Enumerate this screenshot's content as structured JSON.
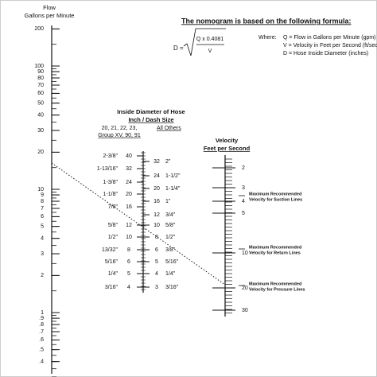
{
  "formula": {
    "heading": "The nomogram is based on the following formula:",
    "lhs": "D =",
    "numerator": "Q x  0.4081",
    "denominator": "V",
    "where": "Where:",
    "definitions": [
      "Q = Flow in Gallons per Minute (gpm)",
      "V = Velocity in Feet per Second (ft/sec)",
      "D = Hose Inside Diameter (inches)"
    ]
  },
  "flow_scale": {
    "title": [
      "Flow",
      "Gallons per Minute"
    ],
    "labels": [
      "200",
      "100",
      "90",
      "80",
      "70",
      "60",
      "50",
      "40",
      "30",
      "20",
      "10",
      "9",
      "8",
      "7",
      "6",
      "5",
      "4",
      "3",
      "2",
      "1",
      ".9",
      ".8",
      ".7",
      ".6",
      ".5",
      ".4"
    ]
  },
  "diameter_scale": {
    "title": "Inside Diameter of Hose",
    "subtitle": "Inch / Dash Size",
    "group_heading": [
      "20, 21, 22, 23,",
      "Group XV, 90, 91"
    ],
    "others_heading": "All Others",
    "left": [
      {
        "inch": "2-3/8\"",
        "dash": "40"
      },
      {
        "inch": "1-13/16\"",
        "dash": "32"
      },
      {
        "inch": "1-3/8\"",
        "dash": "24"
      },
      {
        "inch": "1-1/8\"",
        "dash": "20"
      },
      {
        "inch": "7/8\"",
        "dash": "16"
      },
      {
        "inch": "5/8\"",
        "dash": "12"
      },
      {
        "inch": "1/2\"",
        "dash": "10"
      },
      {
        "inch": "13/32\"",
        "dash": "8"
      },
      {
        "inch": "5/16\"",
        "dash": "6"
      },
      {
        "inch": "1/4\"",
        "dash": "5"
      },
      {
        "inch": "3/16\"",
        "dash": "4"
      }
    ],
    "right": [
      {
        "dash": "32",
        "inch": "2\""
      },
      {
        "dash": "24",
        "inch": "1-1/2\""
      },
      {
        "dash": "20",
        "inch": "1-1/4\""
      },
      {
        "dash": "16",
        "inch": "1\""
      },
      {
        "dash": "12",
        "inch": "3/4\""
      },
      {
        "dash": "10",
        "inch": "5/8\""
      },
      {
        "dash": "8",
        "inch": "1/2\""
      },
      {
        "dash": "6",
        "inch": "3/8\""
      },
      {
        "dash": "5",
        "inch": "5/16\""
      },
      {
        "dash": "4",
        "inch": "1/4\""
      },
      {
        "dash": "3",
        "inch": "3/16\""
      }
    ]
  },
  "velocity_scale": {
    "title": [
      "Velocity",
      "Feet per Second"
    ],
    "labels": [
      "2",
      "3",
      "4",
      "5",
      "10",
      "20",
      "30"
    ],
    "limits": [
      {
        "lines": [
          "Maximum Recommended",
          "Velocity for Suction Lines"
        ]
      },
      {
        "lines": [
          "Maximum Recommended",
          "Velocity for Return Lines"
        ]
      },
      {
        "lines": [
          "Maximum Recommended",
          "Velocity for Pressure Lines"
        ]
      }
    ]
  }
}
